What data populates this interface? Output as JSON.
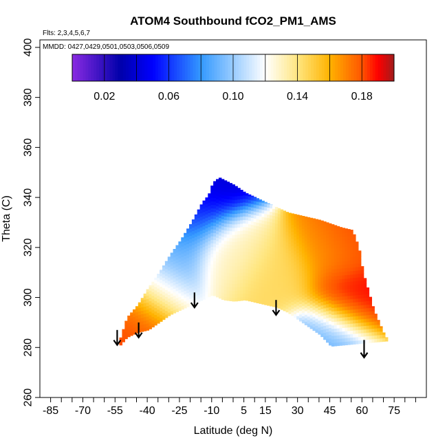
{
  "chart_data": {
    "type": "heatmap",
    "title": "ATOM4 Southbound fCO2_PM1_AMS",
    "xlabel": "Latitude (deg N)",
    "ylabel": "Theta (C)",
    "xlim": [
      -90,
      90
    ],
    "ylim": [
      260,
      403
    ],
    "x_ticks": [
      -85,
      -70,
      -55,
      -40,
      -25,
      -10,
      5,
      15,
      30,
      45,
      60,
      75
    ],
    "x_minor_ticks": [
      -80,
      -75,
      -65,
      -60,
      -50,
      -45,
      -35,
      -30,
      -20,
      -15,
      -5,
      0,
      10,
      20,
      25,
      35,
      40,
      50,
      55,
      65,
      70,
      80,
      85
    ],
    "y_ticks": [
      260,
      280,
      300,
      320,
      340,
      360,
      380,
      400
    ],
    "annotations": [
      "Flts: 2,3,4,5,6,7",
      "MMDD: 0427,0429,0501,0503,0506,0509"
    ],
    "colorbar": {
      "vmin": 0.0,
      "vmax": 0.2,
      "tick_values": [
        0.02,
        0.06,
        0.1,
        0.14,
        0.18
      ],
      "tick_labels": [
        "0.02",
        "0.06",
        "0.10",
        "0.14",
        "0.18"
      ],
      "boundaries": [
        0.0,
        0.02,
        0.04,
        0.06,
        0.08,
        0.1,
        0.12,
        0.14,
        0.16,
        0.18,
        0.2
      ],
      "colors": [
        [
          0.0,
          "#8a2be2"
        ],
        [
          0.03,
          "#0000aa"
        ],
        [
          0.05,
          "#0000ff"
        ],
        [
          0.08,
          "#3399ff"
        ],
        [
          0.1,
          "#99ccff"
        ],
        [
          0.12,
          "#ffffff"
        ],
        [
          0.14,
          "#ffe680"
        ],
        [
          0.16,
          "#ffb300"
        ],
        [
          0.18,
          "#ff5500"
        ],
        [
          0.19,
          "#ff0000"
        ],
        [
          0.2,
          "#a01c1c"
        ]
      ]
    },
    "tropopause": [
      [
        -53,
        281
      ],
      [
        -50,
        284
      ],
      [
        -45,
        286
      ],
      [
        -40,
        287
      ],
      [
        -35,
        290
      ],
      [
        -30,
        293
      ],
      [
        -25,
        295
      ],
      [
        -20,
        297
      ],
      [
        -15,
        299
      ],
      [
        -10,
        301
      ],
      [
        -5,
        299
      ],
      [
        0,
        298.5
      ],
      [
        5,
        299
      ],
      [
        10,
        298
      ],
      [
        15,
        297
      ],
      [
        20,
        296
      ],
      [
        25,
        294
      ],
      [
        30,
        291
      ],
      [
        35,
        288
      ],
      [
        40,
        285
      ],
      [
        45,
        280.5
      ]
    ],
    "envelope_top": [
      [
        -53,
        284
      ],
      [
        -50,
        292
      ],
      [
        -45,
        297
      ],
      [
        -40,
        304
      ],
      [
        -35,
        310
      ],
      [
        -30,
        317
      ],
      [
        -25,
        323
      ],
      [
        -20,
        330
      ],
      [
        -15,
        338
      ],
      [
        -12,
        341
      ],
      [
        -10,
        346
      ],
      [
        -7,
        348
      ],
      [
        0,
        345
      ],
      [
        5,
        342
      ],
      [
        15,
        338
      ],
      [
        20,
        336
      ],
      [
        25,
        334
      ],
      [
        30,
        333
      ],
      [
        40,
        331
      ],
      [
        50,
        328
      ],
      [
        55,
        327
      ],
      [
        58,
        320
      ],
      [
        60,
        310
      ],
      [
        65,
        295
      ],
      [
        70,
        285
      ],
      [
        72,
        282.5
      ]
    ],
    "fit_field": {
      "notes": "value = f(lat, theta)",
      "high_theta_low_value_center": [
        -12,
        343
      ],
      "values": [
        {
          "lat": -10,
          "theta": 345,
          "value": 0.04
        },
        {
          "lat": -20,
          "theta": 335,
          "value": 0.06
        },
        {
          "lat": -30,
          "theta": 320,
          "value": 0.09
        },
        {
          "lat": -40,
          "theta": 305,
          "value": 0.12
        },
        {
          "lat": -50,
          "theta": 292,
          "value": 0.17
        },
        {
          "lat": -51,
          "theta": 290,
          "value": 0.19
        },
        {
          "lat": 0,
          "theta": 320,
          "value": 0.13
        },
        {
          "lat": 20,
          "theta": 310,
          "value": 0.145
        },
        {
          "lat": 45,
          "theta": 320,
          "value": 0.165
        },
        {
          "lat": 55,
          "theta": 325,
          "value": 0.185
        },
        {
          "lat": 55,
          "theta": 300,
          "value": 0.19
        },
        {
          "lat": 45,
          "theta": 283,
          "value": 0.09
        }
      ]
    },
    "arrows": [
      {
        "lat": -54,
        "theta_top": 287,
        "theta_bottom": 281
      },
      {
        "lat": -44,
        "theta_top": 290,
        "theta_bottom": 284
      },
      {
        "lat": -18,
        "theta_top": 302,
        "theta_bottom": 296
      },
      {
        "lat": 20,
        "theta_top": 299,
        "theta_bottom": 293
      },
      {
        "lat": 61,
        "theta_top": 283,
        "theta_bottom": 276
      }
    ],
    "grid": false,
    "legend": "colorbar-top-inset"
  }
}
